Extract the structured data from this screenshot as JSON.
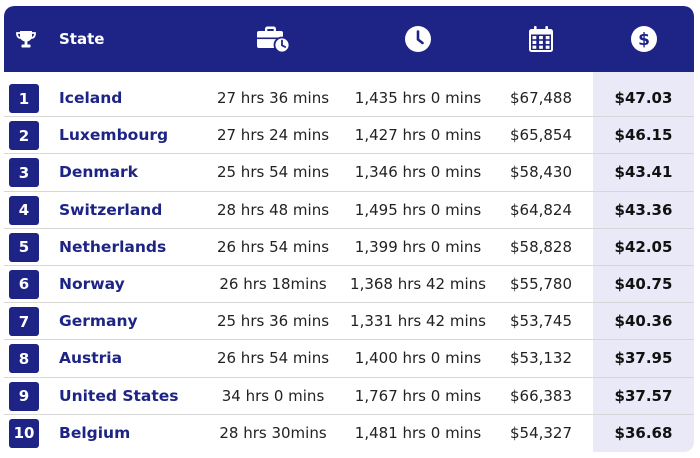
{
  "header": {
    "state_label": "State",
    "icons": [
      "trophy-icon",
      "briefcase-clock-icon",
      "clock-icon",
      "calendar-icon",
      "dollar-icon"
    ]
  },
  "colors": {
    "primary": "#1d2485",
    "highlight_column": "#e9e9f7",
    "row_divider": "#d7d7d7"
  },
  "rows": [
    {
      "rank": "1",
      "state": "Iceland",
      "weekly": "27 hrs 36 mins",
      "annual": "1,435 hrs 0 mins",
      "salary": "$67,488",
      "hourly": "$47.03"
    },
    {
      "rank": "2",
      "state": "Luxembourg",
      "weekly": "27 hrs 24 mins",
      "annual": "1,427 hrs 0 mins",
      "salary": "$65,854",
      "hourly": "$46.15"
    },
    {
      "rank": "3",
      "state": "Denmark",
      "weekly": "25 hrs 54 mins",
      "annual": "1,346 hrs 0 mins",
      "salary": "$58,430",
      "hourly": "$43.41"
    },
    {
      "rank": "4",
      "state": "Switzerland",
      "weekly": "28 hrs 48 mins",
      "annual": "1,495 hrs 0 mins",
      "salary": "$64,824",
      "hourly": "$43.36"
    },
    {
      "rank": "5",
      "state": "Netherlands",
      "weekly": "26 hrs 54 mins",
      "annual": "1,399 hrs 0 mins",
      "salary": "$58,828",
      "hourly": "$42.05"
    },
    {
      "rank": "6",
      "state": "Norway",
      "weekly": "26 hrs 18mins",
      "annual": "1,368 hrs 42 mins",
      "salary": "$55,780",
      "hourly": "$40.75"
    },
    {
      "rank": "7",
      "state": "Germany",
      "weekly": "25 hrs 36 mins",
      "annual": "1,331 hrs 42 mins",
      "salary": "$53,745",
      "hourly": "$40.36"
    },
    {
      "rank": "8",
      "state": "Austria",
      "weekly": "26 hrs 54 mins",
      "annual": "1,400 hrs 0 mins",
      "salary": "$53,132",
      "hourly": "$37.95"
    },
    {
      "rank": "9",
      "state": "United States",
      "weekly": "34 hrs 0 mins",
      "annual": "1,767 hrs 0 mins",
      "salary": "$66,383",
      "hourly": "$37.57"
    },
    {
      "rank": "10",
      "state": "Belgium",
      "weekly": "28 hrs 30mins",
      "annual": "1,481 hrs 0 mins",
      "salary": "$54,327",
      "hourly": "$36.68"
    }
  ]
}
